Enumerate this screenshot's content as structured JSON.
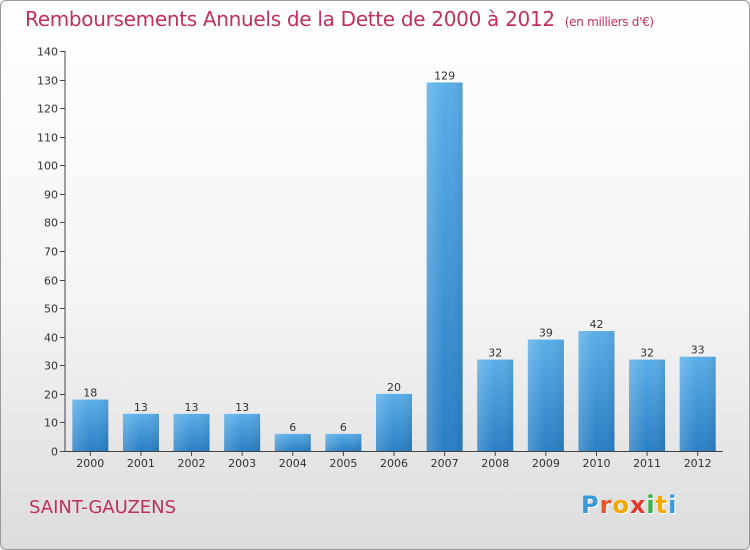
{
  "header": {
    "title": "Remboursements Annuels de la Dette de 2000 à 2012",
    "subtitle": "(en milliers d'€)"
  },
  "commune": "SAINT-GAUZENS",
  "logo": {
    "text": "Proxiti",
    "letter_colors": [
      "#3a9ad9",
      "#e8552b",
      "#f2a900",
      "#e23a2e",
      "#3bb14a",
      "#f2a900",
      "#3a9ad9"
    ]
  },
  "colors": {
    "title": "#c0305a",
    "bar_light": "#5aaee8",
    "bar_dark": "#2a7fc4",
    "axis": "#333333"
  },
  "chart_data": {
    "type": "bar",
    "categories": [
      "2000",
      "2001",
      "2002",
      "2003",
      "2004",
      "2005",
      "2006",
      "2007",
      "2008",
      "2009",
      "2010",
      "2011",
      "2012"
    ],
    "values": [
      18,
      13,
      13,
      13,
      6,
      6,
      20,
      129,
      32,
      39,
      42,
      32,
      33
    ],
    "data_labels": [
      "18",
      "13",
      "13",
      "13",
      "6",
      "6",
      "20",
      "129",
      "32",
      "39",
      "42",
      "32",
      "33"
    ],
    "ylim": [
      0,
      140
    ],
    "yticks": [
      0,
      10,
      20,
      30,
      40,
      50,
      60,
      70,
      80,
      90,
      100,
      110,
      120,
      130,
      140
    ],
    "grid": false,
    "legend": "none"
  }
}
